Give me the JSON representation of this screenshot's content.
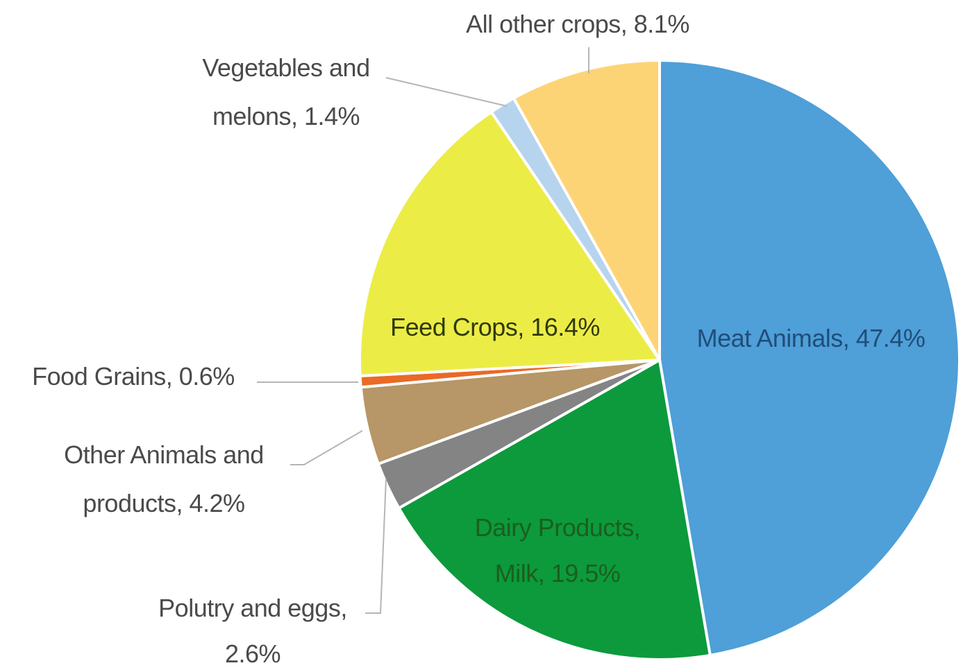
{
  "chart_data": {
    "type": "pie",
    "start_angle_deg": 0,
    "direction": "clockwise",
    "slices": [
      {
        "label": "Meat Animals",
        "value": 47.4,
        "text": "Meat Animals, 47.4%",
        "color": "#4f9fd8"
      },
      {
        "label": "Dairy Products, Milk",
        "value": 19.5,
        "text_lines": [
          "Dairy Products,",
          "Milk, 19.5%"
        ],
        "color": "#0c9a3c"
      },
      {
        "label": "Polutry and eggs",
        "value": 2.6,
        "text_lines": [
          "Polutry and eggs,",
          "2.6%"
        ],
        "color": "#848484"
      },
      {
        "label": "Other Animals and products",
        "value": 4.2,
        "text_lines": [
          "Other Animals and",
          "products, 4.2%"
        ],
        "color": "#b79667"
      },
      {
        "label": "Food Grains",
        "value": 0.6,
        "text": "Food Grains, 0.6%",
        "color": "#ea6a26"
      },
      {
        "label": "Feed Crops",
        "value": 16.4,
        "text": "Feed Crops, 16.4%",
        "color": "#ecec47"
      },
      {
        "label": "Vegetables and melons",
        "value": 1.4,
        "text_lines": [
          "Vegetables and",
          "melons, 1.4%"
        ],
        "color": "#b7d4ee"
      },
      {
        "label": "All other crops",
        "value": 8.1,
        "text": "All other crops, 8.1%",
        "color": "#fdd475"
      }
    ]
  }
}
